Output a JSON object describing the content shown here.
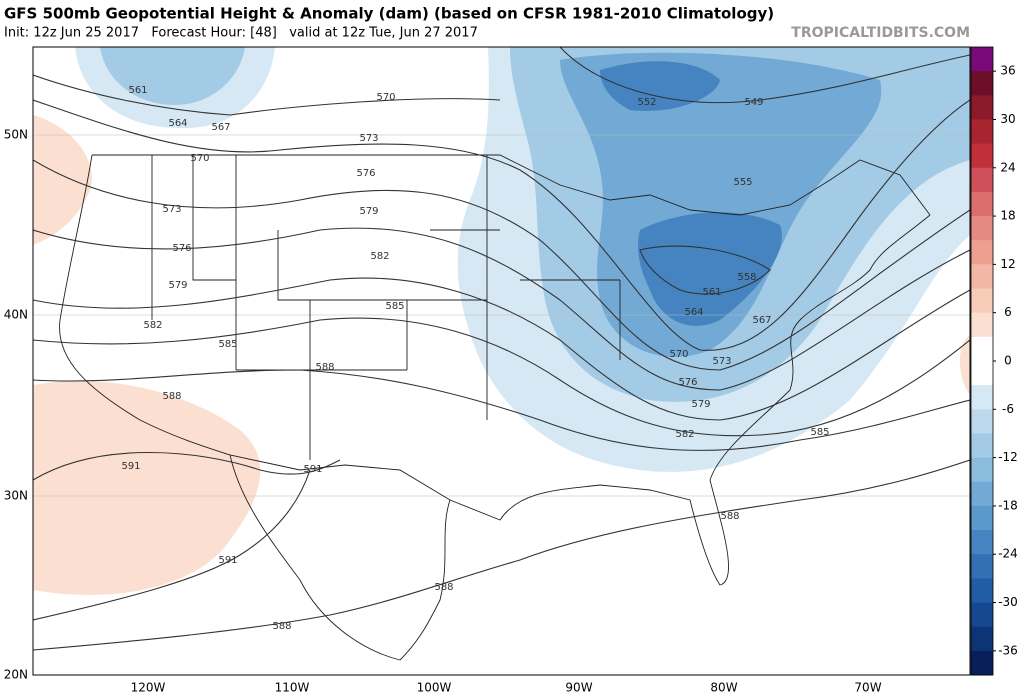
{
  "header": {
    "title": "GFS 500mb Geopotential Height & Anomaly (dam) (based on CFSR 1981-2010 Climatology)",
    "subtitle": "Init: 12z Jun 25 2017   Forecast Hour: [48]   valid at 12z Tue, Jun 27 2017",
    "source": "TROPICALTIDBITS.COM"
  },
  "map": {
    "lat_labels": [
      "50N",
      "40N",
      "30N",
      "20N"
    ],
    "lon_labels": [
      "120W",
      "110W",
      "100W",
      "90W",
      "80W",
      "70W"
    ],
    "contour_labels": [
      "561",
      "564",
      "567",
      "570",
      "573",
      "570",
      "576",
      "573",
      "579",
      "576",
      "582",
      "579",
      "585",
      "582",
      "585",
      "588",
      "588",
      "591",
      "591",
      "591",
      "588",
      "588",
      "588",
      "585",
      "582",
      "579",
      "576",
      "573",
      "570",
      "567",
      "564",
      "561",
      "558",
      "555",
      "552",
      "549"
    ]
  },
  "colorbar": {
    "range": [
      39,
      -39
    ],
    "step": 3,
    "ticks": [
      36,
      30,
      24,
      18,
      12,
      6,
      0,
      -6,
      -12,
      -18,
      -24,
      -30,
      -36
    ],
    "colors": [
      "#7a0a7a",
      "#6e0f2a",
      "#8c1a2a",
      "#a82530",
      "#c0303a",
      "#d0505a",
      "#dc6e6e",
      "#e58a80",
      "#eea090",
      "#f3b8a5",
      "#f7ccb8",
      "#fbe0d2",
      "#ffffff",
      "#ffffff",
      "#d6e8f3",
      "#bcd9ec",
      "#a3cbe5",
      "#8bbcde",
      "#72aad5",
      "#5b98cb",
      "#4584c0",
      "#3270b3",
      "#225ca3",
      "#16488f",
      "#0d3576",
      "#08205a"
    ]
  }
}
